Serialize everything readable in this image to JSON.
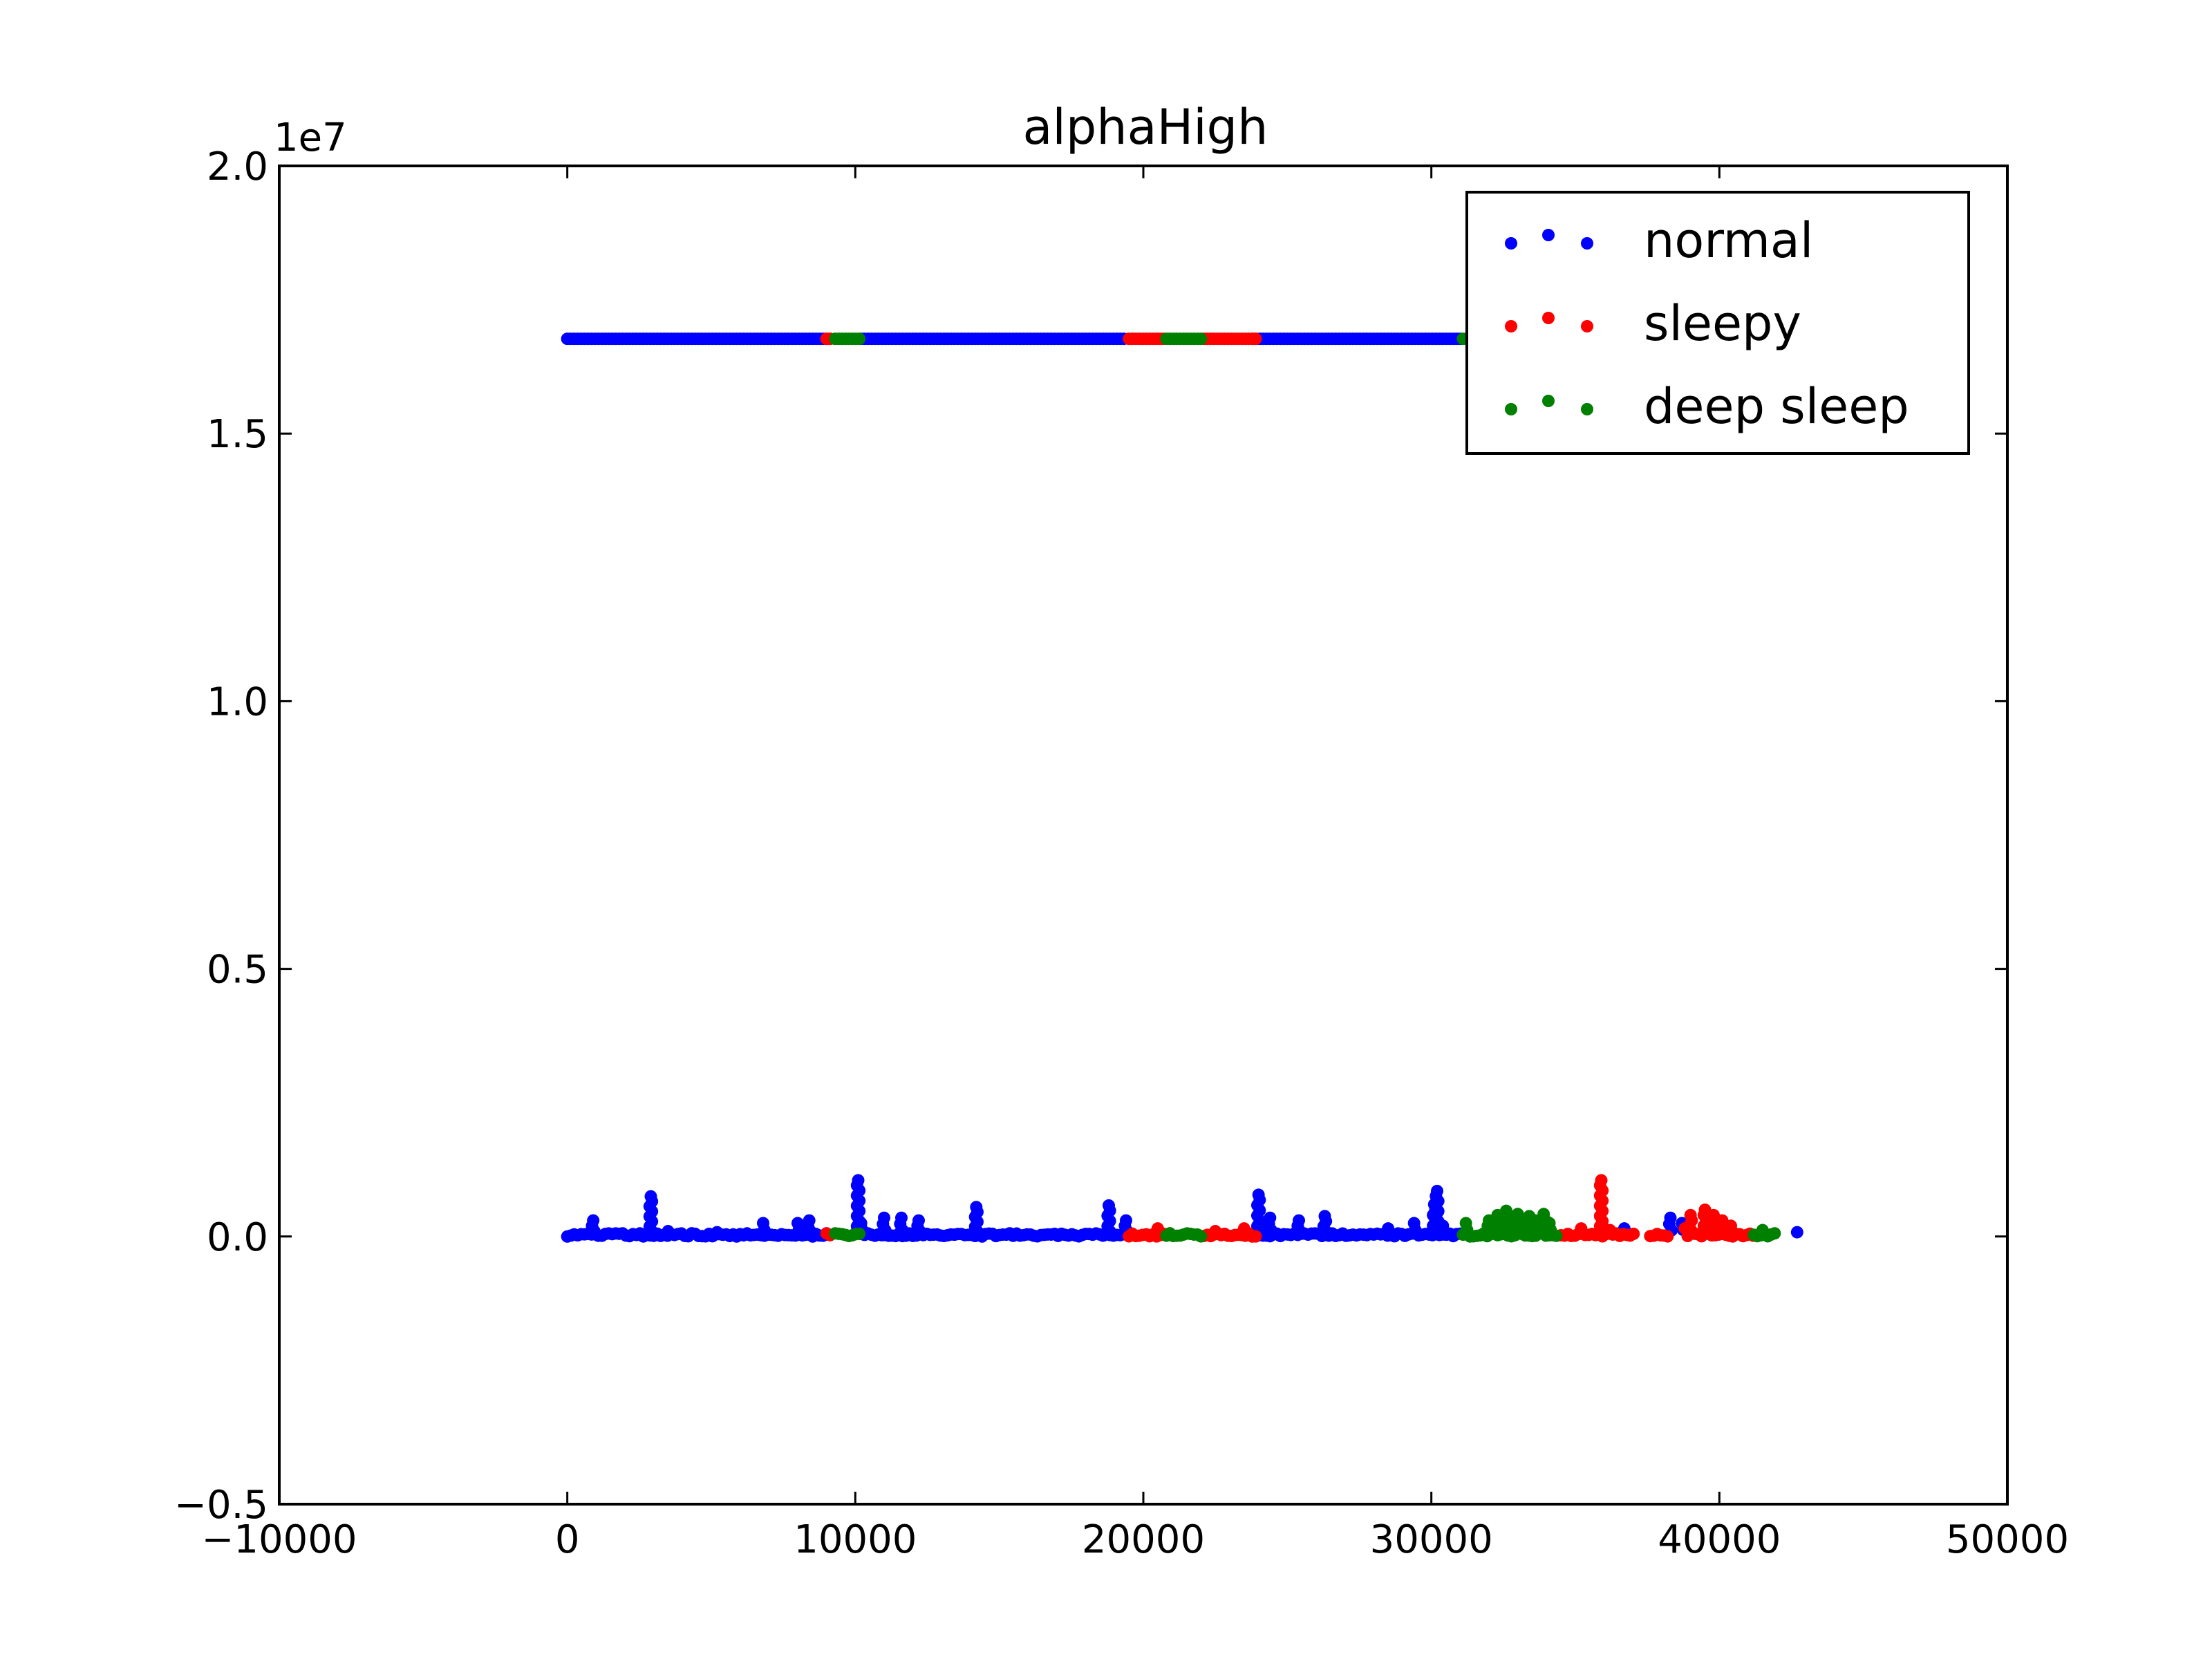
{
  "chart_data": {
    "type": "scatter",
    "title": "alphaHigh",
    "xlabel": "",
    "ylabel": "",
    "y_offset_label": "1e7",
    "xlim": [
      -10000,
      50000
    ],
    "ylim": [
      -5000000,
      20000000
    ],
    "x_ticks": [
      -10000,
      0,
      10000,
      20000,
      30000,
      40000,
      50000
    ],
    "x_tick_labels": [
      "−10000",
      "0",
      "10000",
      "20000",
      "30000",
      "40000",
      "50000"
    ],
    "y_ticks": [
      -5000000,
      0,
      5000000,
      10000000,
      15000000,
      20000000
    ],
    "y_tick_labels": [
      "−0.5",
      "0.0",
      "0.5",
      "1.0",
      "1.5",
      "2.0"
    ],
    "grid": false,
    "legend_position": "upper right",
    "series": [
      {
        "name": "normal",
        "color": "#0000ff",
        "segments": [
          [
            0,
            9200
          ],
          [
            10200,
            19400
          ],
          [
            23800,
            31000
          ]
        ],
        "high_value": 16770000,
        "points": [
          [
            900,
            300000
          ],
          [
            2900,
            750000
          ],
          [
            3500,
            100000
          ],
          [
            5200,
            80000
          ],
          [
            6800,
            250000
          ],
          [
            8000,
            250000
          ],
          [
            8400,
            300000
          ],
          [
            10100,
            1050000
          ],
          [
            10200,
            250000
          ],
          [
            11000,
            350000
          ],
          [
            11600,
            350000
          ],
          [
            12200,
            300000
          ],
          [
            14200,
            550000
          ],
          [
            18800,
            580000
          ],
          [
            19400,
            300000
          ],
          [
            24000,
            780000
          ],
          [
            24400,
            350000
          ],
          [
            25400,
            300000
          ],
          [
            26300,
            380000
          ],
          [
            28500,
            150000
          ],
          [
            29400,
            250000
          ],
          [
            30100,
            600000
          ],
          [
            30200,
            850000
          ],
          [
            30400,
            200000
          ],
          [
            36700,
            150000
          ],
          [
            38300,
            350000
          ],
          [
            38700,
            250000
          ],
          [
            42700,
            80000
          ]
        ]
      },
      {
        "name": "sleepy",
        "color": "#ff0000",
        "segments": [
          [
            9000,
            9200
          ],
          [
            19500,
            20700
          ],
          [
            22100,
            23900
          ],
          [
            34500,
            37100
          ],
          [
            37600,
            38200
          ],
          [
            38900,
            41200
          ]
        ],
        "high_value": 16770000,
        "points": [
          [
            20500,
            150000
          ],
          [
            22500,
            100000
          ],
          [
            23500,
            150000
          ],
          [
            35900,
            1050000
          ],
          [
            35200,
            150000
          ],
          [
            36200,
            120000
          ],
          [
            39000,
            400000
          ],
          [
            39500,
            500000
          ],
          [
            39800,
            400000
          ],
          [
            40100,
            300000
          ],
          [
            40400,
            200000
          ],
          [
            38800,
            150000
          ]
        ]
      },
      {
        "name": "deep sleep",
        "color": "#008000",
        "segments": [
          [
            9300,
            10200
          ],
          [
            20800,
            22000
          ],
          [
            31100,
            34400
          ],
          [
            41200,
            42000
          ]
        ],
        "high_value": 16770000,
        "points": [
          [
            31200,
            250000
          ],
          [
            32000,
            300000
          ],
          [
            32300,
            400000
          ],
          [
            32600,
            480000
          ],
          [
            32800,
            350000
          ],
          [
            33000,
            420000
          ],
          [
            33200,
            300000
          ],
          [
            33400,
            380000
          ],
          [
            33600,
            300000
          ],
          [
            33900,
            420000
          ],
          [
            34100,
            250000
          ],
          [
            41500,
            120000
          ]
        ]
      }
    ]
  }
}
